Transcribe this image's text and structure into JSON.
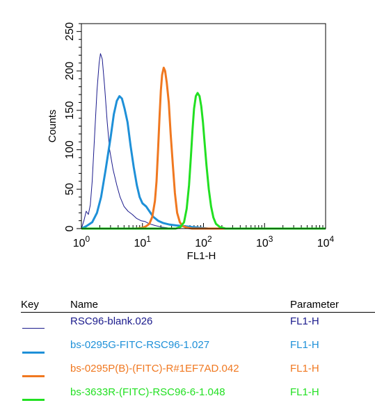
{
  "chart_data": {
    "type": "line",
    "xlabel": "FL1-H",
    "ylabel": "Counts",
    "xscale": "log",
    "xlim": [
      1,
      10000
    ],
    "ylim": [
      0,
      260
    ],
    "x_tick_values": [
      1,
      10,
      100,
      1000,
      10000
    ],
    "x_tick_labels": [
      {
        "base": "10",
        "exp": "0"
      },
      {
        "base": "10",
        "exp": "1"
      },
      {
        "base": "10",
        "exp": "2"
      },
      {
        "base": "10",
        "exp": "3"
      },
      {
        "base": "10",
        "exp": "4"
      }
    ],
    "y_ticks": [
      0,
      50,
      100,
      150,
      200,
      250
    ],
    "grid": false,
    "series": [
      {
        "name": "RSC96-blank.026",
        "color": "#1a1a8c",
        "stroke": 1,
        "points": [
          [
            1,
            0
          ],
          [
            1.1,
            10
          ],
          [
            1.2,
            22
          ],
          [
            1.3,
            18
          ],
          [
            1.4,
            30
          ],
          [
            1.5,
            60
          ],
          [
            1.65,
            120
          ],
          [
            1.8,
            175
          ],
          [
            1.95,
            210
          ],
          [
            2.05,
            222
          ],
          [
            2.2,
            215
          ],
          [
            2.4,
            180
          ],
          [
            2.65,
            135
          ],
          [
            2.9,
            100
          ],
          [
            3.3,
            75
          ],
          [
            3.8,
            55
          ],
          [
            4.3,
            40
          ],
          [
            5,
            28
          ],
          [
            5.8,
            22
          ],
          [
            6.8,
            18
          ],
          [
            8,
            13
          ],
          [
            9.5,
            10
          ],
          [
            11,
            9
          ],
          [
            13,
            6
          ],
          [
            16,
            4
          ],
          [
            20,
            2
          ],
          [
            26,
            1
          ],
          [
            35,
            0
          ],
          [
            10000,
            0
          ]
        ]
      },
      {
        "name": "bs-0295G-FITC-RSC96-1.027",
        "color": "#1e90d8",
        "stroke": 3,
        "points": [
          [
            1,
            0
          ],
          [
            1.2,
            3
          ],
          [
            1.5,
            8
          ],
          [
            1.8,
            20
          ],
          [
            2.1,
            40
          ],
          [
            2.5,
            75
          ],
          [
            3,
            115
          ],
          [
            3.4,
            145
          ],
          [
            3.8,
            162
          ],
          [
            4.2,
            168
          ],
          [
            4.6,
            165
          ],
          [
            5.1,
            152
          ],
          [
            5.7,
            135
          ],
          [
            6.4,
            105
          ],
          [
            7.2,
            78
          ],
          [
            8.1,
            55
          ],
          [
            9,
            40
          ],
          [
            10,
            32
          ],
          [
            11.5,
            28
          ],
          [
            13,
            22
          ],
          [
            15,
            15
          ],
          [
            18,
            10
          ],
          [
            22,
            7
          ],
          [
            28,
            5
          ],
          [
            36,
            4
          ],
          [
            50,
            3
          ],
          [
            65,
            2
          ],
          [
            90,
            1
          ],
          [
            120,
            0
          ],
          [
            10000,
            0
          ]
        ]
      },
      {
        "name": "bs-0295P(B)-(FITC)-R#1EF7AD.042",
        "color": "#f07820",
        "stroke": 3,
        "points": [
          [
            1,
            0
          ],
          [
            8,
            0
          ],
          [
            10,
            1
          ],
          [
            11.5,
            3
          ],
          [
            13,
            6
          ],
          [
            14.5,
            15
          ],
          [
            16,
            35
          ],
          [
            17,
            60
          ],
          [
            18,
            100
          ],
          [
            19,
            140
          ],
          [
            20,
            175
          ],
          [
            21,
            195
          ],
          [
            22.3,
            204
          ],
          [
            23.5,
            200
          ],
          [
            25,
            185
          ],
          [
            27,
            160
          ],
          [
            29,
            120
          ],
          [
            31.5,
            80
          ],
          [
            34,
            45
          ],
          [
            37,
            20
          ],
          [
            41,
            8
          ],
          [
            46,
            3
          ],
          [
            55,
            1
          ],
          [
            65,
            0
          ],
          [
            10000,
            0
          ]
        ]
      },
      {
        "name": "bs-3633R-(FITC)-RSC96-6-1.048",
        "color": "#22e022",
        "stroke": 3,
        "points": [
          [
            1,
            0
          ],
          [
            35,
            0
          ],
          [
            42,
            2
          ],
          [
            48,
            8
          ],
          [
            53,
            25
          ],
          [
            58,
            55
          ],
          [
            62,
            90
          ],
          [
            66,
            125
          ],
          [
            70,
            152
          ],
          [
            75,
            168
          ],
          [
            80,
            172
          ],
          [
            86,
            168
          ],
          [
            92,
            155
          ],
          [
            98,
            135
          ],
          [
            104,
            110
          ],
          [
            112,
            80
          ],
          [
            122,
            50
          ],
          [
            133,
            28
          ],
          [
            145,
            14
          ],
          [
            160,
            6
          ],
          [
            185,
            2
          ],
          [
            230,
            0
          ],
          [
            10000,
            0
          ]
        ]
      }
    ]
  },
  "legend": {
    "headers": {
      "key": "Key",
      "name": "Name",
      "parameter": "Parameter"
    },
    "rows": [
      {
        "name": "RSC96-blank.026",
        "parameter": "FL1-H",
        "color": "#1a1a8c"
      },
      {
        "name": "bs-0295G-FITC-RSC96-1.027",
        "parameter": "FL1-H",
        "color": "#1e90d8"
      },
      {
        "name": "bs-0295P(B)-(FITC)-R#1EF7AD.042",
        "parameter": "FL1-H",
        "color": "#f07820"
      },
      {
        "name": "bs-3633R-(FITC)-RSC96-6-1.048",
        "parameter": "FL1-H",
        "color": "#22e022"
      }
    ]
  }
}
